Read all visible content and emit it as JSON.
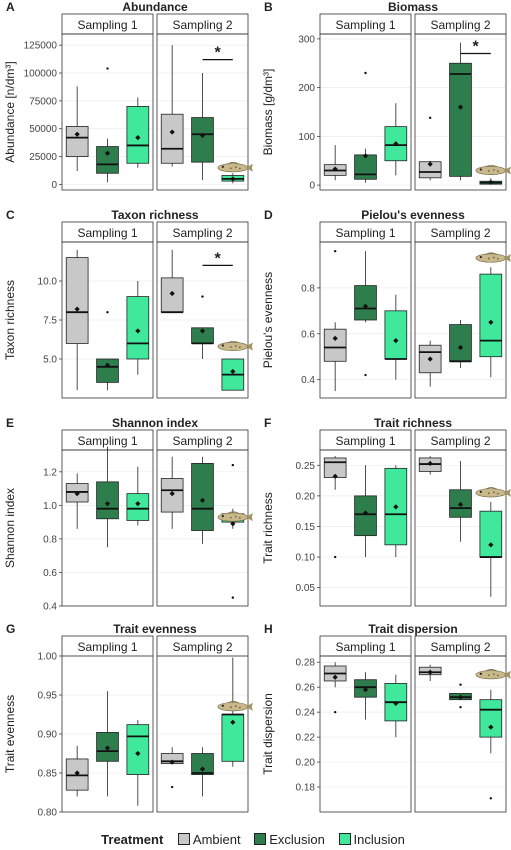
{
  "colors": {
    "Ambient": "#c8c8c8",
    "Exclusion": "#2e7d4c",
    "Inclusion": "#3fe89a"
  },
  "legend": {
    "title": "Treatment",
    "entries": [
      "Ambient",
      "Exclusion",
      "Inclusion"
    ]
  },
  "chart_data": [
    {
      "type": "boxplot",
      "letter": "A",
      "title": "Abundance",
      "ylabel": "Abundance [n/dm³]",
      "ylim": [
        -5000,
        135000
      ],
      "yticks": [
        0,
        25000,
        50000,
        75000,
        100000,
        125000
      ],
      "ytick_labels": [
        "0",
        "25000",
        "50000",
        "75000",
        "100000",
        "125000"
      ],
      "facets": [
        "Sampling 1",
        "Sampling 2"
      ],
      "boxes": [
        [
          {
            "min": 12000,
            "q1": 25000,
            "median": 42000,
            "q3": 52000,
            "max": 88000,
            "mean": 45000,
            "outliers": []
          },
          {
            "min": 2000,
            "q1": 10000,
            "median": 18000,
            "q3": 34000,
            "max": 41000,
            "mean": 28000,
            "outliers": [
              104000
            ]
          },
          {
            "min": 15000,
            "q1": 19000,
            "median": 35000,
            "q3": 70000,
            "max": 78000,
            "mean": 42000,
            "outliers": []
          }
        ],
        [
          {
            "min": 16000,
            "q1": 19000,
            "median": 32000,
            "q3": 63000,
            "max": 125000,
            "mean": 47000,
            "outliers": []
          },
          {
            "min": 4000,
            "q1": 20000,
            "median": 45000,
            "q3": 60000,
            "max": 100000,
            "mean": 44000,
            "outliers": []
          },
          {
            "min": 1000,
            "q1": 3000,
            "median": 5000,
            "q3": 8000,
            "max": 10000,
            "mean": 5000,
            "outliers": []
          }
        ]
      ],
      "significance": {
        "facet": 1,
        "from": 1,
        "to": 2,
        "label": "*",
        "y": 112000
      },
      "fish_icon": {
        "facet": 1,
        "box": 2,
        "y": 15000
      }
    },
    {
      "type": "boxplot",
      "letter": "B",
      "title": "Biomass",
      "ylabel": "Biomass [g/dm³]",
      "ylim": [
        -10,
        310
      ],
      "yticks": [
        0,
        100,
        200,
        300
      ],
      "ytick_labels": [
        "0",
        "100",
        "200",
        "300"
      ],
      "facets": [
        "Sampling 1",
        "Sampling 2"
      ],
      "boxes": [
        [
          {
            "min": 10,
            "q1": 20,
            "median": 30,
            "q3": 42,
            "max": 82,
            "mean": 33,
            "outliers": []
          },
          {
            "min": 5,
            "q1": 12,
            "median": 22,
            "q3": 62,
            "max": 75,
            "mean": 60,
            "outliers": [
              230
            ]
          },
          {
            "min": 20,
            "q1": 50,
            "median": 82,
            "q3": 120,
            "max": 168,
            "mean": 85,
            "outliers": []
          }
        ],
        [
          {
            "min": 10,
            "q1": 15,
            "median": 27,
            "q3": 48,
            "max": 50,
            "mean": 43,
            "outliers": [
              138
            ]
          },
          {
            "min": 10,
            "q1": 18,
            "median": 228,
            "q3": 250,
            "max": 292,
            "mean": 160,
            "outliers": []
          },
          {
            "min": 1,
            "q1": 2,
            "median": 5,
            "q3": 8,
            "max": 14,
            "mean": 6,
            "outliers": []
          }
        ]
      ],
      "significance": {
        "facet": 1,
        "from": 1,
        "to": 2,
        "label": "*",
        "y": 270
      },
      "fish_icon": {
        "facet": 1,
        "box": 2,
        "y": 30
      }
    },
    {
      "type": "boxplot",
      "letter": "C",
      "title": "Taxon richness",
      "ylabel": "Taxon richness",
      "ylim": [
        2.5,
        12.5
      ],
      "yticks": [
        5.0,
        7.5,
        10.0
      ],
      "ytick_labels": [
        "5.0",
        "7.5",
        "10.0"
      ],
      "facets": [
        "Sampling 1",
        "Sampling 2"
      ],
      "boxes": [
        [
          {
            "min": 3,
            "q1": 6,
            "median": 8,
            "q3": 11.5,
            "max": 12,
            "mean": 8.2,
            "outliers": []
          },
          {
            "min": 3,
            "q1": 3.5,
            "median": 4.5,
            "q3": 5,
            "max": 5,
            "mean": 4.6,
            "outliers": [
              8
            ]
          },
          {
            "min": 4,
            "q1": 5,
            "median": 6,
            "q3": 9,
            "max": 10,
            "mean": 6.8,
            "outliers": []
          }
        ],
        [
          {
            "min": 8,
            "q1": 8,
            "median": 8,
            "q3": 10.2,
            "max": 12,
            "mean": 9.2,
            "outliers": []
          },
          {
            "min": 5,
            "q1": 6,
            "median": 6,
            "q3": 7,
            "max": 7,
            "mean": 6.8,
            "outliers": [
              9
            ]
          },
          {
            "min": 3,
            "q1": 3,
            "median": 4,
            "q3": 5,
            "max": 5,
            "mean": 4.2,
            "outliers": []
          }
        ]
      ],
      "significance": {
        "facet": 1,
        "from": 1,
        "to": 2,
        "label": "*",
        "y": 11.0
      },
      "fish_icon": {
        "facet": 1,
        "box": 2,
        "y": 5.8
      }
    },
    {
      "type": "boxplot",
      "letter": "D",
      "title": "Pielou's evenness",
      "ylabel": "Pielou's evenness",
      "ylim": [
        0.32,
        1.0
      ],
      "yticks": [
        0.4,
        0.6,
        0.8
      ],
      "ytick_labels": [
        "0.4",
        "0.6",
        "0.8"
      ],
      "facets": [
        "Sampling 1",
        "Sampling 2"
      ],
      "boxes": [
        [
          {
            "min": 0.35,
            "q1": 0.48,
            "median": 0.54,
            "q3": 0.62,
            "max": 0.65,
            "mean": 0.58,
            "outliers": [
              0.96
            ]
          },
          {
            "min": 0.65,
            "q1": 0.66,
            "median": 0.71,
            "q3": 0.81,
            "max": 0.96,
            "mean": 0.72,
            "outliers": [
              0.42
            ]
          },
          {
            "min": 0.4,
            "q1": 0.49,
            "median": 0.49,
            "q3": 0.7,
            "max": 0.77,
            "mean": 0.57,
            "outliers": []
          }
        ],
        [
          {
            "min": 0.37,
            "q1": 0.43,
            "median": 0.52,
            "q3": 0.55,
            "max": 0.57,
            "mean": 0.49,
            "outliers": []
          },
          {
            "min": 0.45,
            "q1": 0.48,
            "median": 0.48,
            "q3": 0.64,
            "max": 0.66,
            "mean": 0.54,
            "outliers": []
          },
          {
            "min": 0.41,
            "q1": 0.5,
            "median": 0.57,
            "q3": 0.86,
            "max": 0.89,
            "mean": 0.65,
            "outliers": []
          }
        ]
      ],
      "fish_icon": {
        "facet": 1,
        "box": 2,
        "y": 0.93
      }
    },
    {
      "type": "boxplot",
      "letter": "E",
      "title": "Shannon index",
      "ylabel": "Shannon index",
      "ylim": [
        0.4,
        1.33
      ],
      "yticks": [
        0.4,
        0.6,
        0.8,
        1.0,
        1.2
      ],
      "ytick_labels": [
        "0.4",
        "0.6",
        "0.8",
        "1.0",
        "1.2"
      ],
      "facets": [
        "Sampling 1",
        "Sampling 2"
      ],
      "boxes": [
        [
          {
            "min": 0.86,
            "q1": 1.02,
            "median": 1.08,
            "q3": 1.13,
            "max": 1.19,
            "mean": 1.07,
            "outliers": []
          },
          {
            "min": 0.75,
            "q1": 0.92,
            "median": 0.98,
            "q3": 1.14,
            "max": 1.35,
            "mean": 1.01,
            "outliers": []
          },
          {
            "min": 0.88,
            "q1": 0.91,
            "median": 0.98,
            "q3": 1.07,
            "max": 1.23,
            "mean": 1.01,
            "outliers": []
          }
        ],
        [
          {
            "min": 0.86,
            "q1": 0.96,
            "median": 1.09,
            "q3": 1.16,
            "max": 1.29,
            "mean": 1.07,
            "outliers": []
          },
          {
            "min": 0.77,
            "q1": 0.85,
            "median": 0.98,
            "q3": 1.25,
            "max": 1.29,
            "mean": 1.03,
            "outliers": []
          },
          {
            "min": 0.86,
            "q1": 0.9,
            "median": 0.92,
            "q3": 0.95,
            "max": 0.98,
            "mean": 0.89,
            "outliers": [
              1.24,
              0.45
            ]
          }
        ]
      ],
      "fish_icon": {
        "facet": 1,
        "box": 2,
        "y": 0.93
      }
    },
    {
      "type": "boxplot",
      "letter": "F",
      "title": "Trait richness",
      "ylabel": "Trait richness",
      "ylim": [
        0.02,
        0.275
      ],
      "yticks": [
        0.05,
        0.1,
        0.15,
        0.2,
        0.25
      ],
      "ytick_labels": [
        "0.05",
        "0.10",
        "0.15",
        "0.20",
        "0.25"
      ],
      "facets": [
        "Sampling 1",
        "Sampling 2"
      ],
      "boxes": [
        [
          {
            "min": 0.21,
            "q1": 0.23,
            "median": 0.255,
            "q3": 0.262,
            "max": 0.265,
            "mean": 0.232,
            "outliers": [
              0.1
            ]
          },
          {
            "min": 0.1,
            "q1": 0.135,
            "median": 0.17,
            "q3": 0.2,
            "max": 0.25,
            "mean": 0.172,
            "outliers": []
          },
          {
            "min": 0.1,
            "q1": 0.12,
            "median": 0.17,
            "q3": 0.245,
            "max": 0.25,
            "mean": 0.182,
            "outliers": []
          }
        ],
        [
          {
            "min": 0.235,
            "q1": 0.24,
            "median": 0.252,
            "q3": 0.262,
            "max": 0.265,
            "mean": 0.253,
            "outliers": []
          },
          {
            "min": 0.125,
            "q1": 0.165,
            "median": 0.18,
            "q3": 0.21,
            "max": 0.257,
            "mean": 0.186,
            "outliers": []
          },
          {
            "min": 0.035,
            "q1": 0.1,
            "median": 0.1,
            "q3": 0.175,
            "max": 0.19,
            "mean": 0.12,
            "outliers": []
          }
        ]
      ],
      "fish_icon": {
        "facet": 1,
        "box": 2,
        "y": 0.205
      }
    },
    {
      "type": "boxplot",
      "letter": "G",
      "title": "Trait evenness",
      "ylabel": "Trait evenness",
      "ylim": [
        0.8,
        1.0
      ],
      "yticks": [
        0.8,
        0.85,
        0.9,
        0.95,
        1.0
      ],
      "ytick_labels": [
        "0.80",
        "0.85",
        "0.90",
        "0.95",
        "1.00"
      ],
      "facets": [
        "Sampling 1",
        "Sampling 2"
      ],
      "boxes": [
        [
          {
            "min": 0.82,
            "q1": 0.828,
            "median": 0.847,
            "q3": 0.868,
            "max": 0.885,
            "mean": 0.85,
            "outliers": []
          },
          {
            "min": 0.82,
            "q1": 0.865,
            "median": 0.878,
            "q3": 0.902,
            "max": 0.955,
            "mean": 0.882,
            "outliers": []
          },
          {
            "min": 0.808,
            "q1": 0.848,
            "median": 0.897,
            "q3": 0.912,
            "max": 0.918,
            "mean": 0.875,
            "outliers": []
          }
        ],
        [
          {
            "min": 0.862,
            "q1": 0.862,
            "median": 0.865,
            "q3": 0.875,
            "max": 0.883,
            "mean": 0.864,
            "outliers": [
              0.832
            ]
          },
          {
            "min": 0.82,
            "q1": 0.848,
            "median": 0.85,
            "q3": 0.875,
            "max": 0.883,
            "mean": 0.855,
            "outliers": []
          },
          {
            "min": 0.858,
            "q1": 0.865,
            "median": 0.925,
            "q3": 0.925,
            "max": 0.998,
            "mean": 0.915,
            "outliers": []
          }
        ]
      ],
      "fish_icon": {
        "facet": 1,
        "box": 2,
        "y": 0.935
      }
    },
    {
      "type": "boxplot",
      "letter": "H",
      "title": "Trait dispersion",
      "ylabel": "Trait dispersion",
      "ylim": [
        0.16,
        0.285
      ],
      "yticks": [
        0.18,
        0.2,
        0.22,
        0.24,
        0.26,
        0.28
      ],
      "ytick_labels": [
        "0.18",
        "0.20",
        "0.22",
        "0.24",
        "0.26",
        "0.28"
      ],
      "facets": [
        "Sampling 1",
        "Sampling 2"
      ],
      "boxes": [
        [
          {
            "min": 0.26,
            "q1": 0.265,
            "median": 0.271,
            "q3": 0.277,
            "max": 0.28,
            "mean": 0.268,
            "outliers": [
              0.24
            ]
          },
          {
            "min": 0.234,
            "q1": 0.252,
            "median": 0.26,
            "q3": 0.266,
            "max": 0.272,
            "mean": 0.258,
            "outliers": []
          },
          {
            "min": 0.22,
            "q1": 0.233,
            "median": 0.248,
            "q3": 0.263,
            "max": 0.27,
            "mean": 0.247,
            "outliers": []
          }
        ],
        [
          {
            "min": 0.265,
            "q1": 0.27,
            "median": 0.272,
            "q3": 0.276,
            "max": 0.278,
            "mean": 0.272,
            "outliers": []
          },
          {
            "min": 0.25,
            "q1": 0.25,
            "median": 0.252,
            "q3": 0.255,
            "max": 0.255,
            "mean": 0.252,
            "outliers": [
              0.262,
              0.244
            ]
          },
          {
            "min": 0.207,
            "q1": 0.22,
            "median": 0.242,
            "q3": 0.25,
            "max": 0.258,
            "mean": 0.228,
            "outliers": [
              0.171
            ]
          }
        ]
      ],
      "fish_icon": {
        "facet": 1,
        "box": 2,
        "y": 0.27
      }
    }
  ]
}
